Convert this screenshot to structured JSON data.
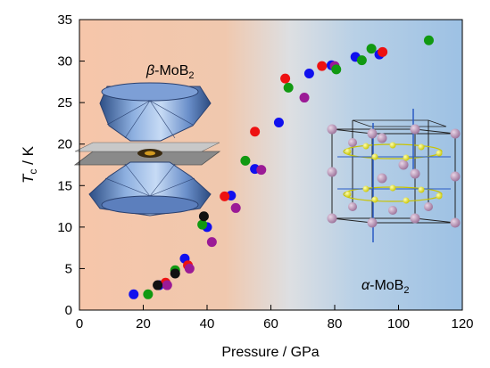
{
  "chart_data": {
    "type": "scatter",
    "xlabel": "Pressure / GPa",
    "ylabel_main": "T",
    "ylabel_sub": "c",
    "ylabel_unit": " / K",
    "xlim": [
      0,
      120
    ],
    "ylim": [
      0,
      35
    ],
    "xticks": [
      0,
      20,
      40,
      60,
      80,
      100,
      120
    ],
    "yticks": [
      0,
      5,
      10,
      15,
      20,
      25,
      30,
      35
    ],
    "grid": false,
    "background_gradient": {
      "left": "#f6c6aa",
      "middle": "#dddfe2",
      "right": "#9dc1e4"
    },
    "labels": {
      "beta_greek": "β",
      "beta_text": "-MoB",
      "beta_sub": "2",
      "alpha_greek": "α",
      "alpha_text": "-MoB",
      "alpha_sub": "2"
    },
    "series": [
      {
        "color": "#1010ee",
        "points": [
          [
            17,
            1.9
          ],
          [
            25,
            3.0
          ],
          [
            33,
            6.2
          ],
          [
            40,
            10.0
          ],
          [
            47.5,
            13.8
          ],
          [
            55,
            17.0
          ],
          [
            62.5,
            22.6
          ],
          [
            72,
            28.5
          ],
          [
            79,
            29.5
          ],
          [
            86.5,
            30.5
          ],
          [
            94,
            30.8
          ]
        ]
      },
      {
        "color": "#ee1111",
        "points": [
          [
            27,
            3.3
          ],
          [
            34,
            5.4
          ],
          [
            45.5,
            13.7
          ],
          [
            55,
            21.5
          ],
          [
            64.5,
            27.9
          ],
          [
            76,
            29.4
          ],
          [
            95,
            31.1
          ]
        ]
      },
      {
        "color": "#9b1a96",
        "points": [
          [
            27.5,
            3.0
          ],
          [
            34.5,
            5.0
          ],
          [
            41.5,
            8.2
          ],
          [
            49,
            12.3
          ],
          [
            57,
            16.9
          ],
          [
            70.5,
            25.6
          ],
          [
            80,
            29.4
          ]
        ]
      },
      {
        "color": "#119911",
        "points": [
          [
            21.5,
            1.9
          ],
          [
            30,
            4.8
          ],
          [
            38.5,
            10.3
          ],
          [
            52,
            18.0
          ],
          [
            65.5,
            26.8
          ],
          [
            80.5,
            29.0
          ],
          [
            88.5,
            30.1
          ],
          [
            91.5,
            31.5
          ],
          [
            109.5,
            32.5
          ]
        ]
      },
      {
        "color": "#111111",
        "points": [
          [
            24.5,
            3.0
          ],
          [
            30,
            4.4
          ],
          [
            39,
            11.3
          ]
        ]
      }
    ]
  }
}
